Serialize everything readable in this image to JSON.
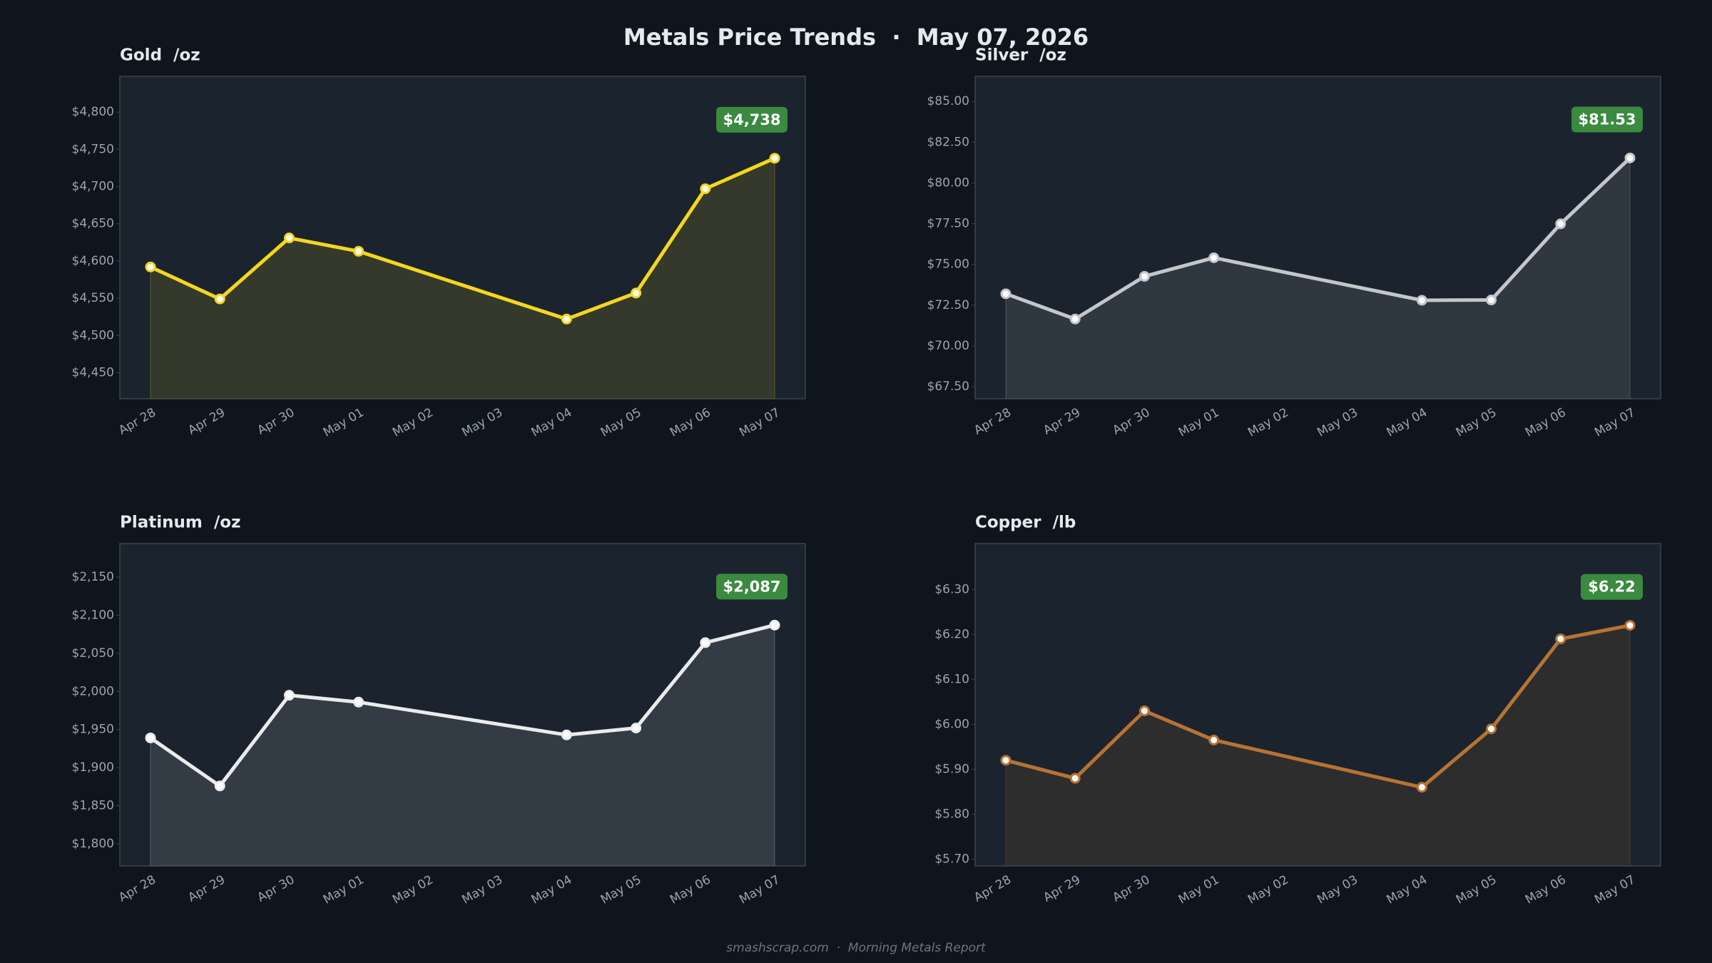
{
  "title": "Metals Price Trends  ·  May 07, 2026",
  "footer": "smashscrap.com  ·  Morning Metals Report",
  "chart_data": [
    {
      "type": "line",
      "title": "Gold  /oz",
      "color": "#f5d61e",
      "x": [
        "Apr 28",
        "Apr 29",
        "Apr 30",
        "May 01",
        "May 04",
        "May 05",
        "May 06",
        "May 07"
      ],
      "xticks": [
        "Apr 28",
        "Apr 29",
        "Apr 30",
        "May 01",
        "May 02",
        "May 03",
        "May 04",
        "May 05",
        "May 06",
        "May 07"
      ],
      "values": [
        4592,
        4549,
        4631,
        4613,
        4522,
        4557,
        4697,
        4738
      ],
      "value_labels": [
        null,
        null,
        null,
        null,
        null,
        null,
        null,
        "$4,738"
      ],
      "ylim": [
        4415,
        4848
      ],
      "yticks": [
        {
          "value": 4450,
          "label": "$4,450"
        },
        {
          "value": 4500,
          "label": "$4,500"
        },
        {
          "value": 4550,
          "label": "$4,550"
        },
        {
          "value": 4600,
          "label": "$4,600"
        },
        {
          "value": 4650,
          "label": "$4,650"
        },
        {
          "value": 4700,
          "label": "$4,700"
        },
        {
          "value": 4750,
          "label": "$4,750"
        },
        {
          "value": 4800,
          "label": "$4,800"
        }
      ]
    },
    {
      "type": "line",
      "title": "Silver  /oz",
      "color": "#c3c7cb",
      "x": [
        "Apr 28",
        "Apr 29",
        "Apr 30",
        "May 01",
        "May 04",
        "May 05",
        "May 06",
        "May 07"
      ],
      "xticks": [
        "Apr 28",
        "Apr 29",
        "Apr 30",
        "May 01",
        "May 02",
        "May 03",
        "May 04",
        "May 05",
        "May 06",
        "May 07"
      ],
      "values": [
        73.2,
        71.65,
        74.27,
        75.41,
        72.8,
        72.82,
        77.49,
        81.53
      ],
      "value_labels": [
        null,
        null,
        null,
        null,
        null,
        null,
        null,
        "$81.53"
      ],
      "ylim": [
        66.76,
        86.54
      ],
      "yticks": [
        {
          "value": 67.5,
          "label": "$67.50"
        },
        {
          "value": 70,
          "label": "$70.00"
        },
        {
          "value": 72.5,
          "label": "$72.50"
        },
        {
          "value": 75,
          "label": "$75.00"
        },
        {
          "value": 77.5,
          "label": "$77.50"
        },
        {
          "value": 80,
          "label": "$80.00"
        },
        {
          "value": 82.5,
          "label": "$82.50"
        },
        {
          "value": 85,
          "label": "$85.00"
        }
      ]
    },
    {
      "type": "line",
      "title": "Platinum  /oz",
      "color": "#e9ebed",
      "x": [
        "Apr 28",
        "Apr 29",
        "Apr 30",
        "May 01",
        "May 04",
        "May 05",
        "May 06",
        "May 07"
      ],
      "xticks": [
        "Apr 28",
        "Apr 29",
        "Apr 30",
        "May 01",
        "May 02",
        "May 03",
        "May 04",
        "May 05",
        "May 06",
        "May 07"
      ],
      "values": [
        1939,
        1876,
        1995,
        1986,
        1943,
        1952,
        2064,
        2087
      ],
      "value_labels": [
        null,
        null,
        null,
        null,
        null,
        null,
        null,
        "$2,087"
      ],
      "ylim": [
        1771,
        2194
      ],
      "yticks": [
        {
          "value": 1800,
          "label": "$1,800"
        },
        {
          "value": 1850,
          "label": "$1,850"
        },
        {
          "value": 1900,
          "label": "$1,900"
        },
        {
          "value": 1950,
          "label": "$1,950"
        },
        {
          "value": 2000,
          "label": "$2,000"
        },
        {
          "value": 2050,
          "label": "$2,050"
        },
        {
          "value": 2100,
          "label": "$2,100"
        },
        {
          "value": 2150,
          "label": "$2,150"
        }
      ]
    },
    {
      "type": "line",
      "title": "Copper  /lb",
      "color": "#b87333",
      "x": [
        "Apr 28",
        "Apr 29",
        "Apr 30",
        "May 01",
        "May 04",
        "May 05",
        "May 06",
        "May 07"
      ],
      "xticks": [
        "Apr 28",
        "Apr 29",
        "Apr 30",
        "May 01",
        "May 02",
        "May 03",
        "May 04",
        "May 05",
        "May 06",
        "May 07"
      ],
      "values": [
        5.92,
        5.88,
        6.03,
        5.965,
        5.86,
        5.99,
        6.19,
        6.22
      ],
      "value_labels": [
        null,
        null,
        null,
        null,
        null,
        null,
        null,
        "$6.22"
      ],
      "ylim": [
        5.685,
        6.402
      ],
      "yticks": [
        {
          "value": 5.7,
          "label": "$5.70"
        },
        {
          "value": 5.8,
          "label": "$5.80"
        },
        {
          "value": 5.9,
          "label": "$5.90"
        },
        {
          "value": 6.0,
          "label": "$6.00"
        },
        {
          "value": 6.1,
          "label": "$6.10"
        },
        {
          "value": 6.2,
          "label": "$6.20"
        },
        {
          "value": 6.3,
          "label": "$6.30"
        }
      ]
    }
  ]
}
